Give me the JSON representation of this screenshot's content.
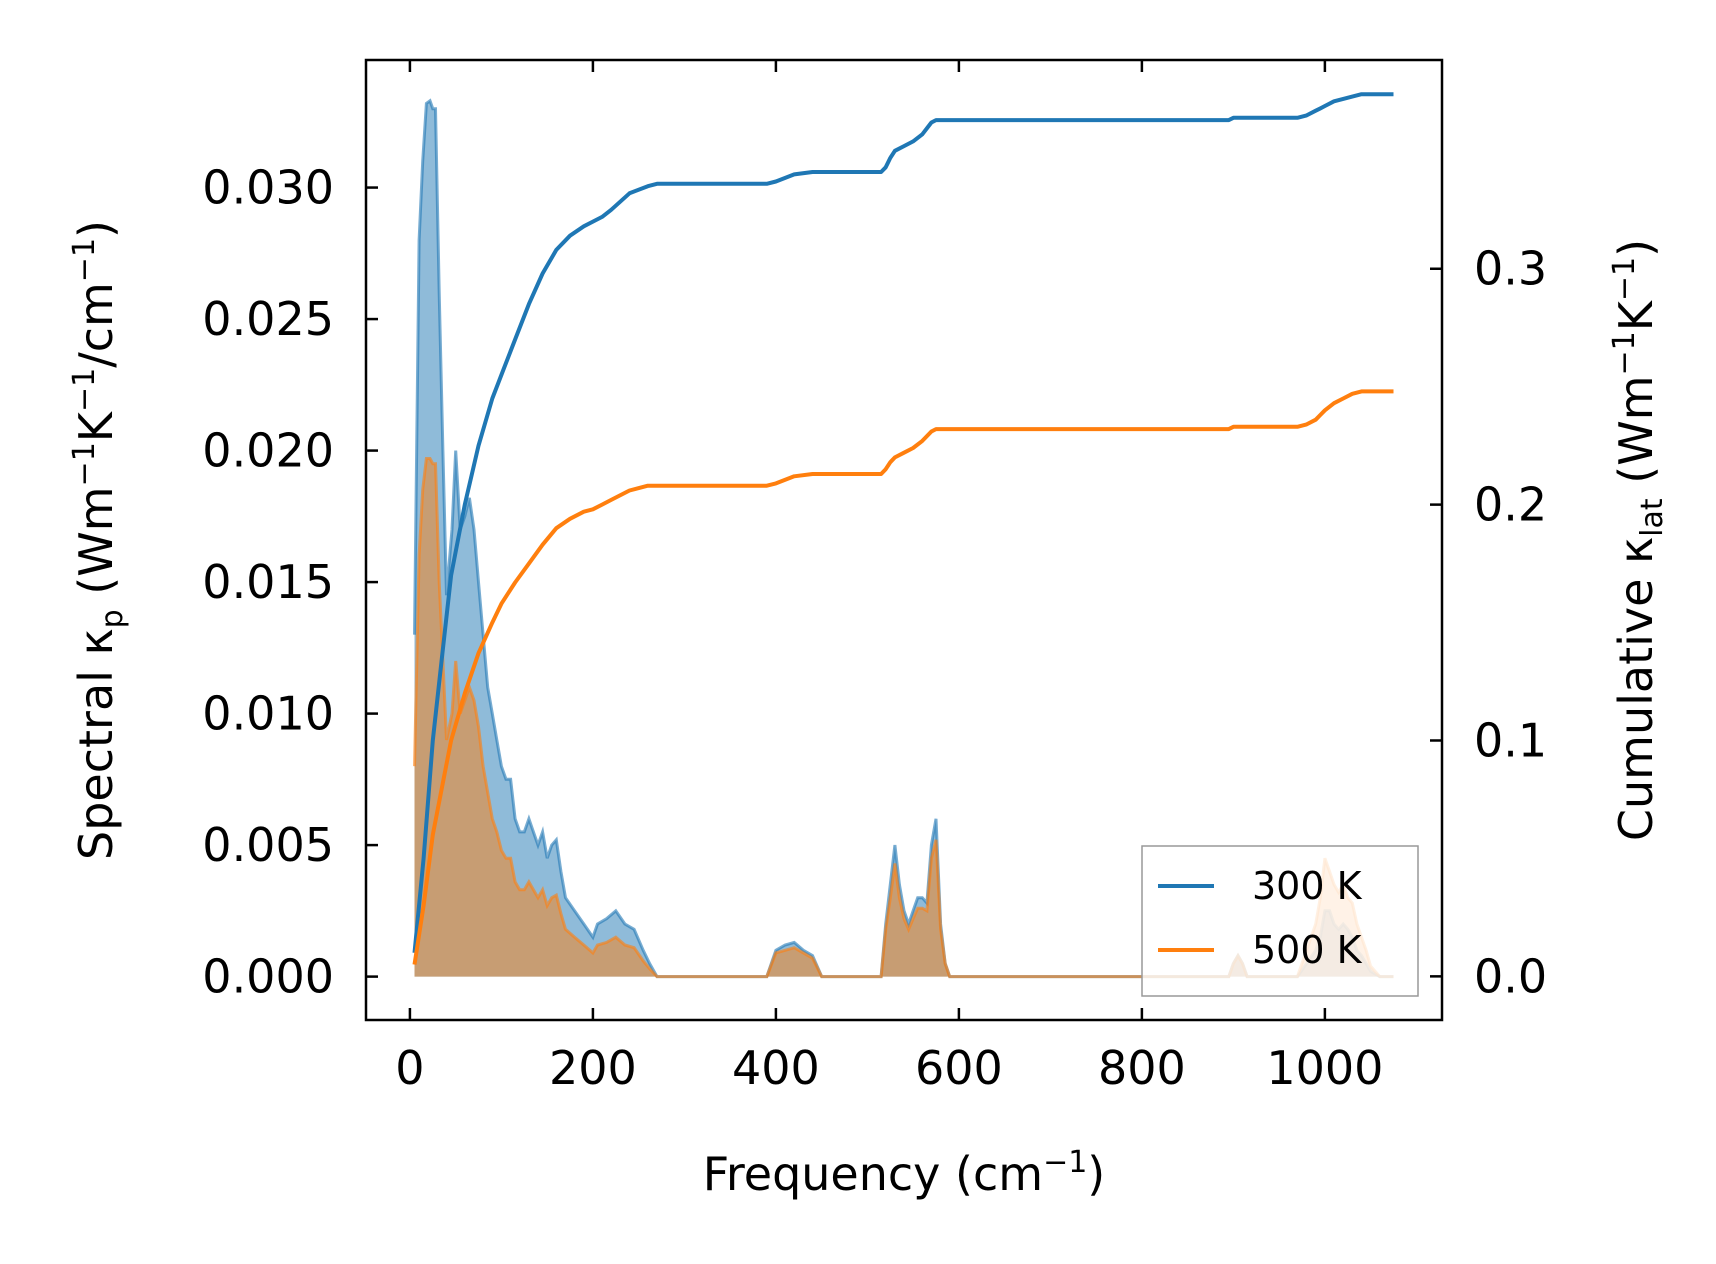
{
  "chart_data": {
    "type": "line",
    "xlabel": "Frequency (cm",
    "xlabel_sup": "−1",
    "xlabel_end": ")",
    "ylabel_left": {
      "a": "Spectral κ",
      "a_sub": "p",
      "b": " (Wm",
      "b_sup": "−1",
      "c": "K",
      "c_sup": "−1",
      "d": "/cm",
      "d_sup": "−1",
      "e": ")"
    },
    "ylabel_right": {
      "a": "Cumulative κ",
      "a_sub": "lat",
      "b": " (Wm",
      "b_sup": "−1",
      "c": "K",
      "c_sup": "−1",
      "d": ")"
    },
    "xlim": [
      -48,
      1128
    ],
    "ylim_left": [
      -0.00165,
      0.03485
    ],
    "ylim_right": [
      -0.0185,
      0.3885
    ],
    "xticks": [
      0,
      200,
      400,
      600,
      800,
      1000
    ],
    "xtick_labels": [
      "0",
      "200",
      "400",
      "600",
      "800",
      "1000"
    ],
    "yticks_left": [
      0.0,
      0.005,
      0.01,
      0.015,
      0.02,
      0.025,
      0.03
    ],
    "ytick_labels_left": [
      "0.000",
      "0.005",
      "0.010",
      "0.015",
      "0.020",
      "0.025",
      "0.030"
    ],
    "yticks_right": [
      0.0,
      0.1,
      0.2,
      0.3
    ],
    "ytick_labels_right": [
      "0.0",
      "0.1",
      "0.2",
      "0.3"
    ],
    "legend": {
      "location": "lower right",
      "entries": [
        "300 K",
        "500 K"
      ]
    },
    "series": [
      {
        "name": "300 K",
        "color": "#1f77b4",
        "spectral": {
          "x": [
            5,
            10,
            14,
            18,
            22,
            25,
            28,
            32,
            36,
            40,
            46,
            50,
            55,
            60,
            65,
            70,
            75,
            80,
            85,
            90,
            95,
            100,
            105,
            110,
            115,
            120,
            125,
            130,
            135,
            140,
            145,
            150,
            155,
            160,
            165,
            170,
            180,
            190,
            200,
            205,
            215,
            225,
            235,
            245,
            255,
            262,
            270,
            280,
            300,
            390,
            400,
            410,
            420,
            430,
            440,
            450,
            515,
            520,
            525,
            530,
            535,
            540,
            545,
            550,
            555,
            560,
            565,
            570,
            575,
            580,
            585,
            590,
            600,
            895,
            900,
            905,
            910,
            915,
            970,
            980,
            990,
            995,
            1000,
            1005,
            1010,
            1015,
            1020,
            1025,
            1030,
            1035,
            1040,
            1045,
            1050,
            1060,
            1075
          ],
          "y": [
            0.013,
            0.028,
            0.031,
            0.0332,
            0.0333,
            0.033,
            0.033,
            0.026,
            0.02,
            0.0145,
            0.017,
            0.02,
            0.017,
            0.0175,
            0.0182,
            0.017,
            0.015,
            0.013,
            0.011,
            0.01,
            0.009,
            0.008,
            0.0075,
            0.0075,
            0.006,
            0.0055,
            0.0055,
            0.006,
            0.0055,
            0.005,
            0.0055,
            0.0045,
            0.005,
            0.0052,
            0.004,
            0.003,
            0.0025,
            0.002,
            0.0015,
            0.002,
            0.0022,
            0.0025,
            0.002,
            0.0018,
            0.001,
            0.0005,
            0.0,
            0.0,
            0.0,
            0.0,
            0.001,
            0.0012,
            0.0013,
            0.001,
            0.0008,
            0.0,
            0.0,
            0.002,
            0.0035,
            0.005,
            0.0035,
            0.0025,
            0.002,
            0.0025,
            0.003,
            0.003,
            0.0028,
            0.005,
            0.006,
            0.002,
            0.0005,
            0.0,
            0.0,
            0.0,
            0.0005,
            0.0008,
            0.0005,
            0.0,
            0.0,
            0.0005,
            0.001,
            0.0015,
            0.0025,
            0.0025,
            0.002,
            0.0018,
            0.002,
            0.0018,
            0.0015,
            0.001,
            0.0008,
            0.0005,
            0.0002,
            0.0,
            0.0
          ]
        },
        "cumulative": {
          "x": [
            5,
            15,
            25,
            35,
            45,
            60,
            75,
            90,
            100,
            115,
            130,
            145,
            160,
            175,
            190,
            200,
            210,
            220,
            240,
            260,
            270,
            300,
            390,
            400,
            420,
            440,
            460,
            515,
            520,
            525,
            530,
            540,
            550,
            560,
            570,
            575,
            580,
            585,
            590,
            600,
            895,
            900,
            910,
            970,
            980,
            990,
            995,
            1000,
            1010,
            1020,
            1030,
            1040,
            1050,
            1060,
            1075
          ],
          "y": [
            0.01,
            0.05,
            0.1,
            0.135,
            0.17,
            0.2,
            0.225,
            0.245,
            0.255,
            0.27,
            0.285,
            0.298,
            0.308,
            0.314,
            0.318,
            0.32,
            0.322,
            0.325,
            0.332,
            0.335,
            0.336,
            0.336,
            0.336,
            0.337,
            0.34,
            0.341,
            0.341,
            0.341,
            0.343,
            0.347,
            0.35,
            0.352,
            0.354,
            0.357,
            0.362,
            0.363,
            0.363,
            0.363,
            0.363,
            0.363,
            0.363,
            0.364,
            0.364,
            0.364,
            0.365,
            0.367,
            0.368,
            0.369,
            0.371,
            0.372,
            0.373,
            0.374,
            0.374,
            0.374,
            0.374
          ]
        }
      },
      {
        "name": "500 K",
        "color": "#ff7f0e",
        "spectral": {
          "x": [
            5,
            10,
            14,
            18,
            22,
            25,
            28,
            32,
            36,
            40,
            46,
            50,
            55,
            60,
            65,
            70,
            75,
            80,
            85,
            90,
            95,
            100,
            105,
            110,
            115,
            120,
            125,
            130,
            135,
            140,
            145,
            150,
            155,
            160,
            165,
            170,
            180,
            190,
            200,
            205,
            215,
            225,
            235,
            245,
            255,
            262,
            270,
            280,
            300,
            390,
            400,
            410,
            420,
            430,
            440,
            450,
            515,
            520,
            525,
            530,
            535,
            540,
            545,
            550,
            555,
            560,
            565,
            570,
            575,
            580,
            585,
            590,
            600,
            895,
            900,
            905,
            910,
            915,
            970,
            980,
            990,
            995,
            1000,
            1005,
            1010,
            1015,
            1020,
            1025,
            1030,
            1035,
            1040,
            1045,
            1050,
            1060,
            1075
          ],
          "y": [
            0.008,
            0.016,
            0.0185,
            0.0197,
            0.0197,
            0.0195,
            0.0195,
            0.015,
            0.012,
            0.009,
            0.01,
            0.012,
            0.01,
            0.0105,
            0.011,
            0.0105,
            0.0095,
            0.008,
            0.007,
            0.006,
            0.0055,
            0.0048,
            0.0045,
            0.0045,
            0.0036,
            0.0033,
            0.0033,
            0.0036,
            0.0033,
            0.003,
            0.0033,
            0.0027,
            0.003,
            0.0031,
            0.0024,
            0.0018,
            0.0015,
            0.0012,
            0.0009,
            0.0012,
            0.0013,
            0.0015,
            0.0012,
            0.0011,
            0.0006,
            0.0003,
            0.0,
            0.0,
            0.0,
            0.0,
            0.0009,
            0.001,
            0.0011,
            0.0009,
            0.0007,
            0.0,
            0.0,
            0.0018,
            0.003,
            0.0043,
            0.003,
            0.0022,
            0.0018,
            0.0022,
            0.0026,
            0.0026,
            0.0025,
            0.0045,
            0.0052,
            0.0018,
            0.0005,
            0.0,
            0.0,
            0.0,
            0.0005,
            0.0008,
            0.0005,
            0.0,
            0.0,
            0.001,
            0.002,
            0.003,
            0.0045,
            0.004,
            0.0035,
            0.0032,
            0.0035,
            0.003,
            0.0028,
            0.002,
            0.0015,
            0.001,
            0.0004,
            0.0,
            0.0
          ]
        },
        "cumulative": {
          "x": [
            5,
            15,
            25,
            35,
            45,
            60,
            75,
            90,
            100,
            115,
            130,
            145,
            160,
            175,
            190,
            200,
            210,
            220,
            240,
            260,
            270,
            300,
            390,
            400,
            420,
            440,
            460,
            515,
            520,
            525,
            530,
            540,
            550,
            560,
            570,
            575,
            580,
            585,
            590,
            600,
            895,
            900,
            910,
            970,
            980,
            990,
            995,
            1000,
            1010,
            1020,
            1030,
            1040,
            1050,
            1060,
            1075
          ],
          "y": [
            0.005,
            0.03,
            0.06,
            0.08,
            0.1,
            0.12,
            0.137,
            0.15,
            0.158,
            0.167,
            0.175,
            0.183,
            0.19,
            0.194,
            0.197,
            0.198,
            0.2,
            0.202,
            0.206,
            0.208,
            0.208,
            0.208,
            0.208,
            0.209,
            0.212,
            0.213,
            0.213,
            0.213,
            0.215,
            0.218,
            0.22,
            0.222,
            0.224,
            0.227,
            0.231,
            0.232,
            0.232,
            0.232,
            0.232,
            0.232,
            0.232,
            0.233,
            0.233,
            0.233,
            0.234,
            0.236,
            0.238,
            0.24,
            0.243,
            0.245,
            0.247,
            0.248,
            0.248,
            0.248,
            0.248
          ]
        }
      }
    ]
  }
}
